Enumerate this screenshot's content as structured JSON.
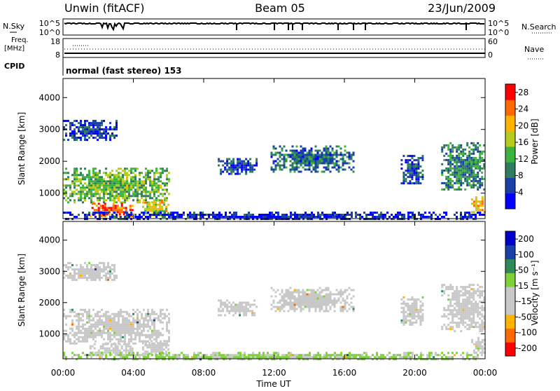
{
  "header": {
    "station": "Unwin (fitACF)",
    "beam": "Beam 05",
    "date": "23/Jun/2009"
  },
  "summary_panels": {
    "nsky": {
      "label": "N.Sky",
      "ticks": [
        "10^5",
        "10^0"
      ]
    },
    "nsearch": {
      "label": "N.Search",
      "ticks": [
        "10^5",
        "10^0"
      ]
    },
    "freq": {
      "label_line1": "Freq.",
      "label_line2": "[MHz]",
      "ticks": [
        "18",
        "8"
      ]
    },
    "nave": {
      "label": "Nave",
      "ticks": [
        "60",
        "0"
      ]
    },
    "cpid": {
      "label": "CPID",
      "value": "normal (fast stereo) 153"
    }
  },
  "colors": {
    "power_scale": [
      "#0000ff",
      "#1a3fa8",
      "#2e7d5e",
      "#3cb33c",
      "#b5cc1e",
      "#ffb300",
      "#ff6a00",
      "#ff0000"
    ],
    "velocity_scale": [
      "#ff0000",
      "#ff6a00",
      "#ffb300",
      "#c8c8c8",
      "#c8c8c8",
      "#7fd13b",
      "#2e8b57",
      "#1a3fa8",
      "#0000cc"
    ]
  },
  "chart_data": [
    {
      "type": "heatmap",
      "name": "power",
      "xlabel": "",
      "ylabel": "Slant Range [km]",
      "xlim": [
        "00:00",
        "24:00"
      ],
      "ylim": [
        200,
        4600
      ],
      "y_ticks": [
        "4000",
        "3000",
        "2000",
        "1000"
      ],
      "colorbar": {
        "label": "Power [dB]",
        "ticks": [
          "28",
          "24",
          "20",
          "16",
          "12",
          "8",
          "4"
        ],
        "range": [
          0,
          30
        ]
      },
      "echo_regions": [
        {
          "t0": 0.0,
          "t1": 6.0,
          "r0": 700,
          "r1": 1800,
          "level": 14
        },
        {
          "t0": 1.5,
          "t1": 4.0,
          "r0": 300,
          "r1": 700,
          "level": 26
        },
        {
          "t0": 4.5,
          "t1": 6.0,
          "r0": 300,
          "r1": 800,
          "level": 18
        },
        {
          "t0": 0.0,
          "t1": 3.0,
          "r0": 2700,
          "r1": 3300,
          "level": 5
        },
        {
          "t0": 8.8,
          "t1": 11.0,
          "r0": 1600,
          "r1": 2100,
          "level": 6
        },
        {
          "t0": 11.8,
          "t1": 16.5,
          "r0": 1700,
          "r1": 2500,
          "level": 8
        },
        {
          "t0": 19.2,
          "t1": 20.5,
          "r0": 1300,
          "r1": 2200,
          "level": 6
        },
        {
          "t0": 21.5,
          "t1": 24.0,
          "r0": 1100,
          "r1": 2600,
          "level": 10
        },
        {
          "t0": 23.2,
          "t1": 24.0,
          "r0": 400,
          "r1": 900,
          "level": 20
        },
        {
          "t0": 0.0,
          "t1": 24.0,
          "r0": 200,
          "r1": 420,
          "level": 4
        }
      ]
    },
    {
      "type": "heatmap",
      "name": "velocity",
      "xlabel": "Time UT",
      "ylabel": "Slant Range [km]",
      "xlim": [
        "00:00",
        "24:00"
      ],
      "ylim": [
        200,
        4600
      ],
      "x_ticks": [
        "00:00",
        "04:00",
        "08:00",
        "12:00",
        "16:00",
        "20:00",
        "00:00"
      ],
      "y_ticks": [
        "4000",
        "3000",
        "2000",
        "1000"
      ],
      "colorbar": {
        "label": "Velocity [m s⁻¹]",
        "ticks": [
          "200",
          "100",
          "50",
          "15",
          "-15",
          "-50",
          "-100",
          "-200"
        ],
        "range": [
          -250,
          250
        ]
      },
      "echo_regions": [
        {
          "t0": 0.0,
          "t1": 6.0,
          "r0": 700,
          "r1": 1800,
          "level": 0
        },
        {
          "t0": 1.5,
          "t1": 4.0,
          "r0": 300,
          "r1": 700,
          "level": 0
        },
        {
          "t0": 4.5,
          "t1": 6.0,
          "r0": 300,
          "r1": 800,
          "level": 0
        },
        {
          "t0": 0.0,
          "t1": 3.0,
          "r0": 2700,
          "r1": 3300,
          "level": 0
        },
        {
          "t0": 8.8,
          "t1": 11.0,
          "r0": 1600,
          "r1": 2100,
          "level": 0
        },
        {
          "t0": 11.8,
          "t1": 16.5,
          "r0": 1700,
          "r1": 2500,
          "level": 0
        },
        {
          "t0": 19.2,
          "t1": 20.5,
          "r0": 1300,
          "r1": 2200,
          "level": 0
        },
        {
          "t0": 21.5,
          "t1": 24.0,
          "r0": 1100,
          "r1": 2600,
          "level": 0
        },
        {
          "t0": 23.2,
          "t1": 24.0,
          "r0": 400,
          "r1": 900,
          "level": 0
        },
        {
          "t0": 0.0,
          "t1": 24.0,
          "r0": 200,
          "r1": 420,
          "level": 30
        }
      ]
    }
  ]
}
